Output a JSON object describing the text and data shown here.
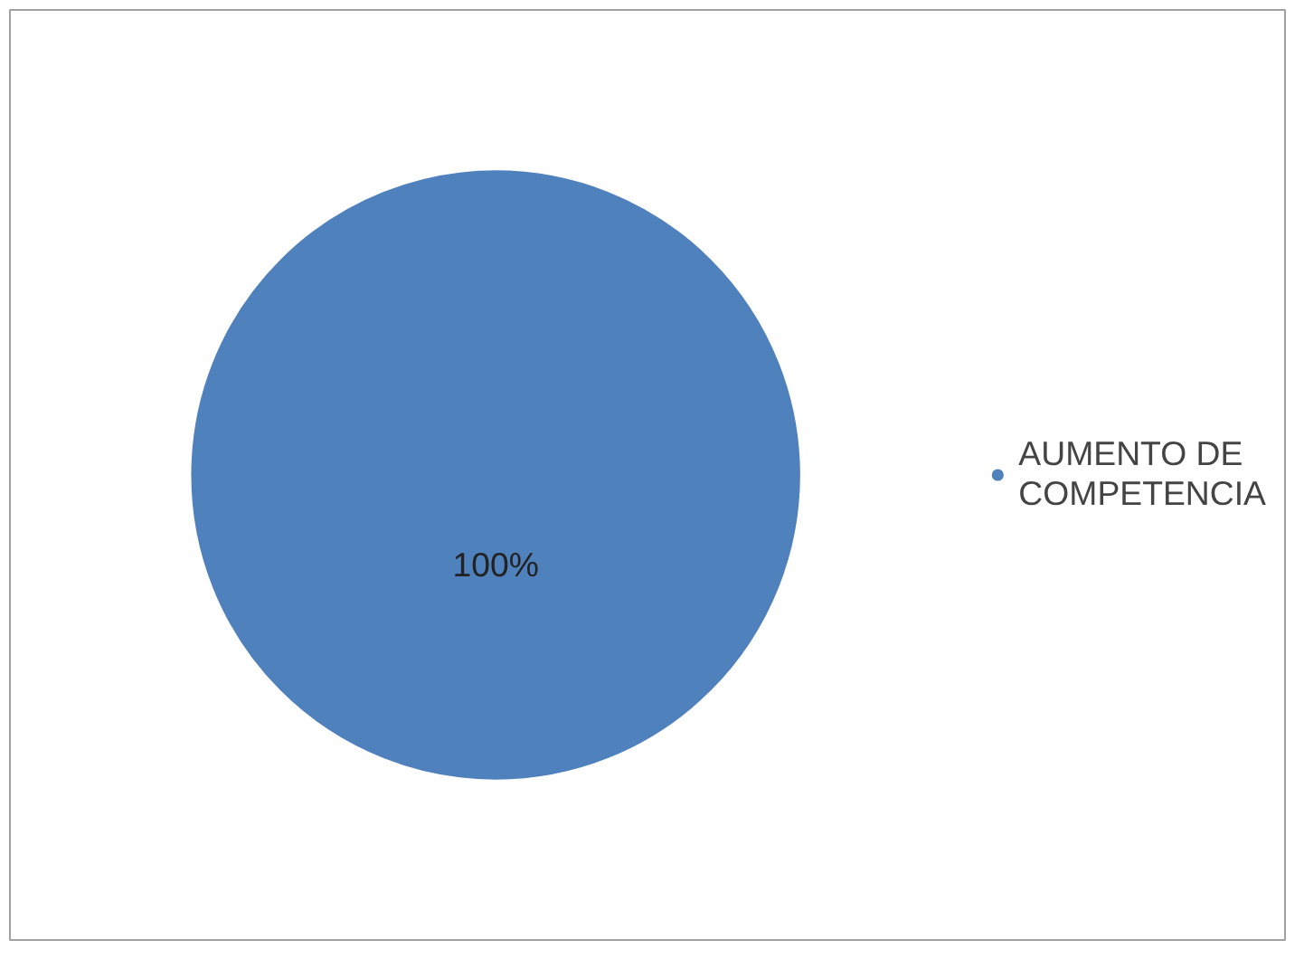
{
  "chart_data": {
    "type": "pie",
    "categories": [
      "AUMENTO DE COMPETENCIA"
    ],
    "values": [
      100
    ],
    "colors": [
      "#4f81bd"
    ],
    "value_labels": [
      "100%"
    ],
    "legend": "right"
  }
}
